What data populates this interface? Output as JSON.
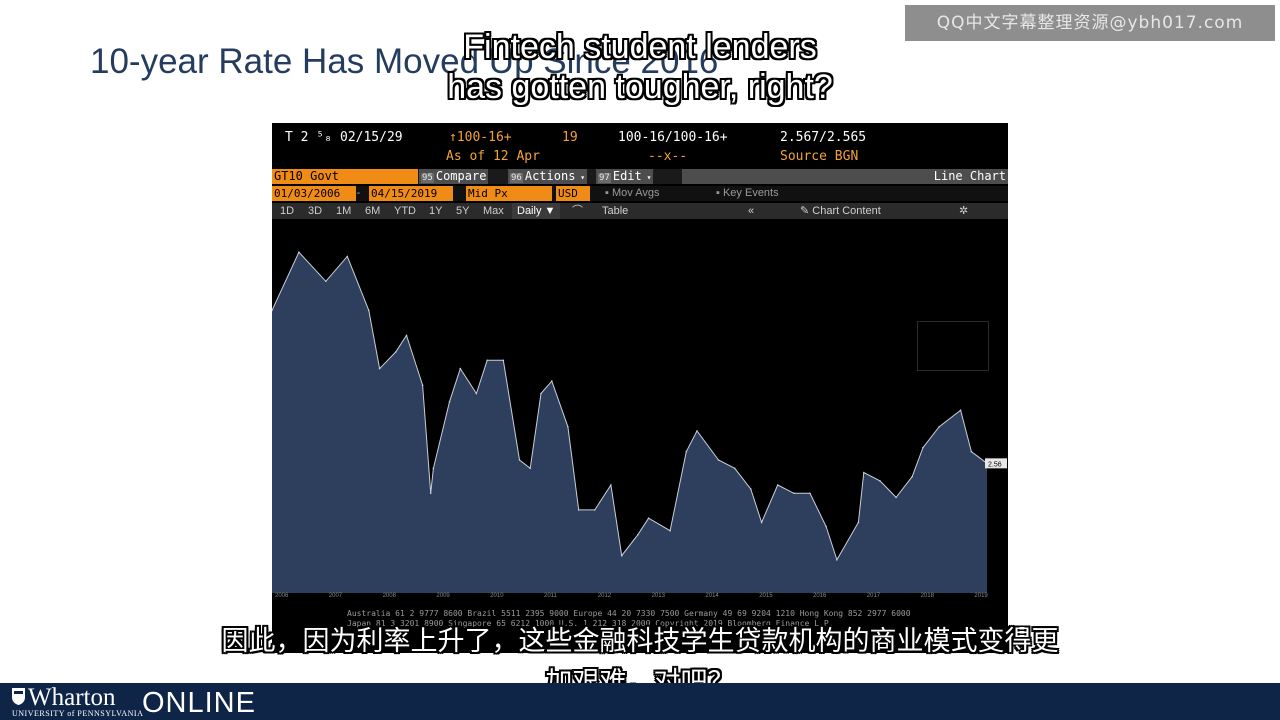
{
  "slide": {
    "title": "10-year Rate Has Moved Up Since 2016",
    "watermark": "QQ中文字幕整理资源@ybh017.com"
  },
  "subtitles": {
    "en_line1": "Fintech student lenders",
    "en_line2": "has gotten tougher, right?",
    "zh_line1": "因此，因为利率上升了，这些金融科技学生贷款机构的商业模式变得更",
    "zh_line2": "加艰难，对吧？"
  },
  "terminal": {
    "header": {
      "ticker": "T 2 ⁵₈",
      "maturity": "02/15/29",
      "price_arrow": "↑100-16+",
      "change": "19",
      "bid_ask": "100-16/100-16+",
      "yield": "2.567/2.565",
      "as_of": "As of  12 Apr",
      "dash": "--x--",
      "source": "Source BGN"
    },
    "command_bar": {
      "security": "GT10 Govt",
      "compare_code": "95",
      "compare": "Compare",
      "actions_code": "96",
      "actions": "Actions",
      "edit_code": "97",
      "edit": "Edit",
      "chart_type": "Line Chart"
    },
    "params_bar": {
      "start_date": "01/03/2006",
      "end_date": "04/15/2019",
      "field": "Mid Px",
      "currency": "USD",
      "mov_avgs": "Mov Avgs",
      "key_events": "Key Events"
    },
    "toolbar": {
      "periods": [
        "1D",
        "3D",
        "1M",
        "6M",
        "YTD",
        "1Y",
        "5Y",
        "Max"
      ],
      "frequency": "Daily ▼",
      "table": "Table",
      "collapse": "«",
      "chart_content": "Chart Content"
    },
    "footer": {
      "line1": "Australia 61 2 9777 8600 Brazil 5511 2395 9000 Europe 44 20 7330 7500 Germany 49 69 9204 1210 Hong Kong 852 2977 6000",
      "line2": "Japan 81 3 3201 8900         Singapore 65 6212 1000        U.S. 1 212 318 2000        Copyright 2019 Bloomberg Finance L.P."
    }
  },
  "chart_data": {
    "type": "area",
    "title": "",
    "xlabel": "",
    "ylabel": "",
    "x_ticks": [
      "2006",
      "2007",
      "2008",
      "2009",
      "2010",
      "2011",
      "2012",
      "2013",
      "2014",
      "2015",
      "2016",
      "2017",
      "2018",
      "2019"
    ],
    "x": [
      2006.0,
      2006.5,
      2007.0,
      2007.4,
      2007.8,
      2008.0,
      2008.3,
      2008.5,
      2008.8,
      2008.95,
      2009.0,
      2009.3,
      2009.5,
      2009.8,
      2010.0,
      2010.3,
      2010.6,
      2010.8,
      2011.0,
      2011.2,
      2011.5,
      2011.7,
      2012.0,
      2012.3,
      2012.5,
      2012.8,
      2013.0,
      2013.4,
      2013.7,
      2013.9,
      2014.3,
      2014.6,
      2014.9,
      2015.1,
      2015.4,
      2015.7,
      2016.0,
      2016.3,
      2016.5,
      2016.9,
      2017.0,
      2017.3,
      2017.6,
      2017.9,
      2018.1,
      2018.4,
      2018.8,
      2019.0,
      2019.29
    ],
    "y": [
      4.4,
      5.1,
      4.75,
      5.05,
      4.4,
      3.7,
      3.9,
      4.1,
      3.5,
      2.2,
      2.5,
      3.3,
      3.7,
      3.4,
      3.8,
      3.8,
      2.6,
      2.5,
      3.4,
      3.55,
      3.0,
      2.0,
      2.0,
      2.3,
      1.45,
      1.7,
      1.9,
      1.75,
      2.7,
      2.95,
      2.6,
      2.5,
      2.25,
      1.85,
      2.3,
      2.2,
      2.2,
      1.8,
      1.4,
      1.85,
      2.45,
      2.35,
      2.15,
      2.4,
      2.75,
      3.0,
      3.2,
      2.7,
      2.56
    ],
    "ylim": [
      1.0,
      5.5
    ],
    "last_value_label": "2.56",
    "fill_color": "#2d3f5c",
    "line_color": "#c9cfd9"
  },
  "branding": {
    "logo": "Wharton",
    "university": "UNIVERSITY of PENNSYLVANIA",
    "online": "ONLINE"
  }
}
